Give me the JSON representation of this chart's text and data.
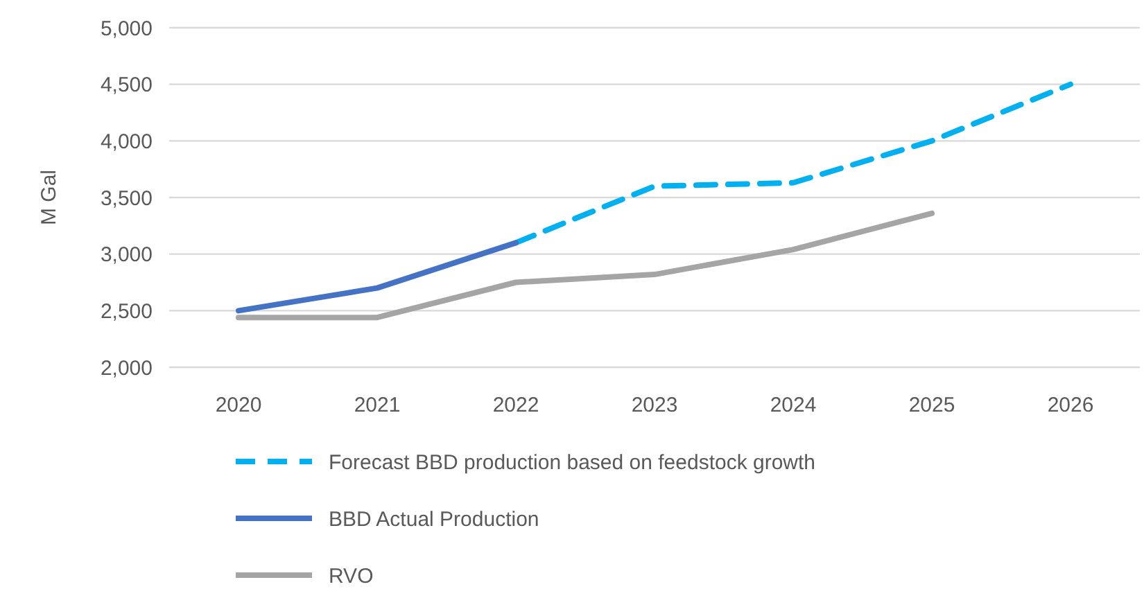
{
  "chart_data": {
    "type": "line",
    "ylabel": "M Gal",
    "categories": [
      "2020",
      "2021",
      "2022",
      "2023",
      "2024",
      "2025",
      "2026"
    ],
    "series": [
      {
        "name": "Forecast BBD production based on feedstock growth",
        "color": "#00b0f0",
        "line_style": "dashed",
        "values": [
          null,
          null,
          3100,
          3600,
          3630,
          4000,
          4500
        ]
      },
      {
        "name": "BBD Actual Production",
        "color": "#4472c4",
        "line_style": "solid",
        "values": [
          2500,
          2700,
          3100,
          null,
          null,
          null,
          null
        ]
      },
      {
        "name": "RVO",
        "color": "#a5a5a5",
        "line_style": "solid",
        "values": [
          2440,
          2440,
          2750,
          2820,
          3040,
          3360,
          null
        ]
      }
    ],
    "ylim": [
      2000,
      5000
    ],
    "yticks": [
      {
        "value": 2000,
        "label": "2,000"
      },
      {
        "value": 2500,
        "label": "2,500"
      },
      {
        "value": 3000,
        "label": "3,000"
      },
      {
        "value": 3500,
        "label": "3,500"
      },
      {
        "value": 4000,
        "label": "4,000"
      },
      {
        "value": 4500,
        "label": "4,500"
      },
      {
        "value": 5000,
        "label": "5,000"
      }
    ],
    "grid": "y",
    "legend": "bottom"
  }
}
